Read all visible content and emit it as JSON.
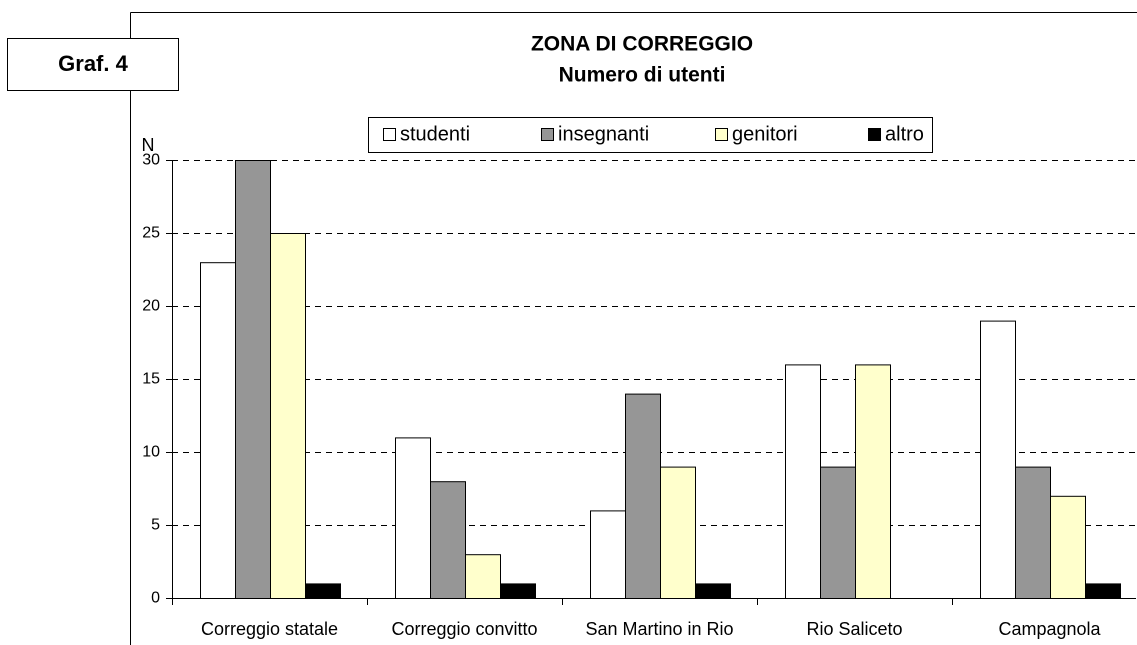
{
  "label": "Graf. 4",
  "chart_data": {
    "type": "bar",
    "title": "ZONA DI CORREGGIO",
    "subtitle": "Numero di utenti",
    "y_label": "N",
    "categories": [
      "Correggio statale",
      "Correggio convitto",
      "San Martino in Rio",
      "Rio Saliceto",
      "Campagnola"
    ],
    "series": [
      {
        "name": "studenti",
        "color": "#ffffff",
        "values": [
          23,
          11,
          6,
          16,
          19
        ]
      },
      {
        "name": "insegnanti",
        "color": "#969696",
        "values": [
          30,
          8,
          14,
          9,
          9
        ]
      },
      {
        "name": "genitori",
        "color": "#ffffcc",
        "values": [
          25,
          3,
          9,
          16,
          7
        ]
      },
      {
        "name": "altro",
        "color": "#000000",
        "values": [
          1,
          1,
          1,
          0,
          1
        ]
      }
    ],
    "ylim": [
      0,
      30
    ],
    "yticks": [
      0,
      5,
      10,
      15,
      20,
      25,
      30
    ],
    "grid": true,
    "legend": "top"
  }
}
